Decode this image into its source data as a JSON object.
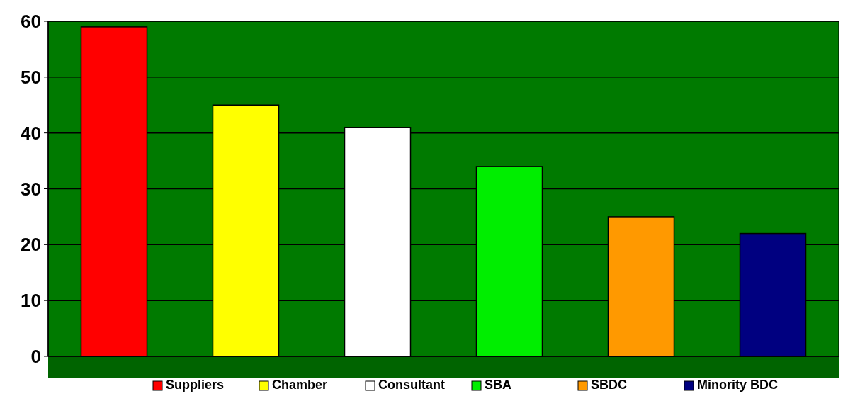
{
  "chart_data": {
    "type": "bar",
    "categories": [
      null,
      null,
      null,
      null,
      null,
      null
    ],
    "series": [
      {
        "name": "Suppliers",
        "color": "#ff0000",
        "values": [
          59,
          null,
          null,
          null,
          null,
          null
        ]
      },
      {
        "name": "Chamber",
        "color": "#ffff00",
        "values": [
          null,
          45,
          null,
          null,
          null,
          null
        ]
      },
      {
        "name": "Consultant",
        "color": "#ffffff",
        "values": [
          null,
          null,
          41,
          null,
          null,
          null
        ]
      },
      {
        "name": "SBA",
        "color": "#00ee00",
        "values": [
          null,
          null,
          null,
          34,
          null,
          null
        ]
      },
      {
        "name": "SBDC",
        "color": "#ff9900",
        "values": [
          null,
          null,
          null,
          null,
          25,
          null
        ]
      },
      {
        "name": "Minority BDC",
        "color": "#000080",
        "values": [
          null,
          null,
          null,
          null,
          null,
          22
        ]
      }
    ],
    "ylim": [
      0,
      60
    ],
    "yticks": [
      0,
      10,
      20,
      30,
      40,
      50,
      60
    ],
    "grid": "y",
    "legend": "bottom",
    "tick_labels": "y"
  }
}
